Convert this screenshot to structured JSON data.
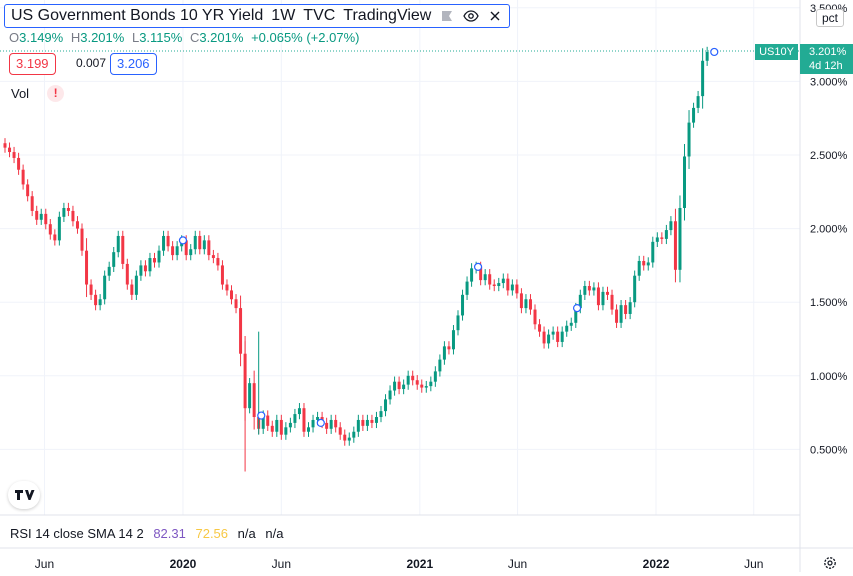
{
  "header": {
    "title": "US Government Bonds 10 YR Yield",
    "interval": "1W",
    "source": "TVC",
    "platform": "TradingView"
  },
  "ohlc": {
    "o_label": "O",
    "o_value": "3.149%",
    "h_label": "H",
    "h_value": "3.201%",
    "l_label": "L",
    "l_value": "3.115%",
    "c_label": "C",
    "c_value": "3.201%",
    "change": "+0.065% (+2.07%)"
  },
  "prices": {
    "bid": "3.199",
    "spread": "0.007",
    "ask": "3.206"
  },
  "vol_label": "Vol",
  "warning_icon": "!",
  "rsi": {
    "label": "RSI 14 close SMA 14 2",
    "value1": "82.31",
    "value2": "72.56",
    "na1": "n/a",
    "na2": "n/a"
  },
  "scale_button": "pct",
  "last_price": {
    "symbol": "US10Y",
    "value": "3.201%",
    "countdown": "4d 12h"
  },
  "colors": {
    "up": "#089981",
    "down": "#f23645",
    "accent": "#2962ff",
    "badge": "#22ab94"
  },
  "icons": [
    "tradingview-logo-icon",
    "eye-icon",
    "close-icon",
    "flag-icon",
    "gear-icon",
    "warning-icon"
  ],
  "chart_data": {
    "type": "candlestick",
    "y_ticks": [
      "0.500%",
      "1.000%",
      "1.500%",
      "2.000%",
      "2.500%",
      "3.000%",
      "3.500%"
    ],
    "x_ticks": [
      "Jun",
      "2020",
      "Jun",
      "2021",
      "Jun",
      "2022",
      "Jun"
    ],
    "x_tick_dates": [
      "2019-06",
      "2020-01",
      "2020-06",
      "2021-01",
      "2021-06",
      "2022-01",
      "2022-06"
    ],
    "ylim": [
      -0.05,
      3.6
    ],
    "grid": true,
    "dividend_marker_dates": [
      "2020-01",
      "2020-05",
      "2020-08",
      "2021-04",
      "2021-09",
      "2022-04"
    ],
    "closes": [
      2.55,
      2.52,
      2.48,
      2.4,
      2.3,
      2.22,
      2.12,
      2.06,
      2.1,
      2.03,
      1.96,
      1.92,
      2.08,
      2.14,
      2.12,
      2.05,
      2.0,
      1.85,
      1.62,
      1.55,
      1.48,
      1.52,
      1.68,
      1.74,
      1.84,
      1.95,
      1.76,
      1.62,
      1.55,
      1.68,
      1.75,
      1.71,
      1.8,
      1.77,
      1.85,
      1.95,
      1.88,
      1.82,
      1.88,
      1.92,
      1.82,
      1.86,
      1.95,
      1.86,
      1.92,
      1.82,
      1.8,
      1.75,
      1.62,
      1.58,
      1.52,
      1.46,
      1.15,
      0.78,
      0.95,
      0.72,
      0.64,
      0.73,
      0.66,
      0.62,
      0.7,
      0.6,
      0.65,
      0.68,
      0.74,
      0.78,
      0.62,
      0.65,
      0.7,
      0.72,
      0.68,
      0.64,
      0.7,
      0.65,
      0.6,
      0.56,
      0.58,
      0.62,
      0.7,
      0.66,
      0.7,
      0.68,
      0.72,
      0.76,
      0.84,
      0.9,
      0.96,
      0.91,
      0.94,
      1.0,
      0.97,
      0.94,
      0.92,
      0.93,
      0.96,
      1.03,
      1.11,
      1.2,
      1.18,
      1.31,
      1.41,
      1.55,
      1.64,
      1.73,
      1.74,
      1.65,
      1.69,
      1.62,
      1.61,
      1.63,
      1.66,
      1.58,
      1.62,
      1.56,
      1.46,
      1.52,
      1.45,
      1.35,
      1.3,
      1.22,
      1.28,
      1.3,
      1.23,
      1.3,
      1.34,
      1.36,
      1.46,
      1.55,
      1.61,
      1.58,
      1.6,
      1.48,
      1.57,
      1.55,
      1.45,
      1.36,
      1.48,
      1.42,
      1.5,
      1.68,
      1.78,
      1.75,
      1.77,
      1.91,
      1.94,
      1.93,
      1.99,
      2.05,
      1.72,
      2.14,
      2.49,
      2.72,
      2.82,
      2.9,
      3.14,
      3.2
    ]
  }
}
